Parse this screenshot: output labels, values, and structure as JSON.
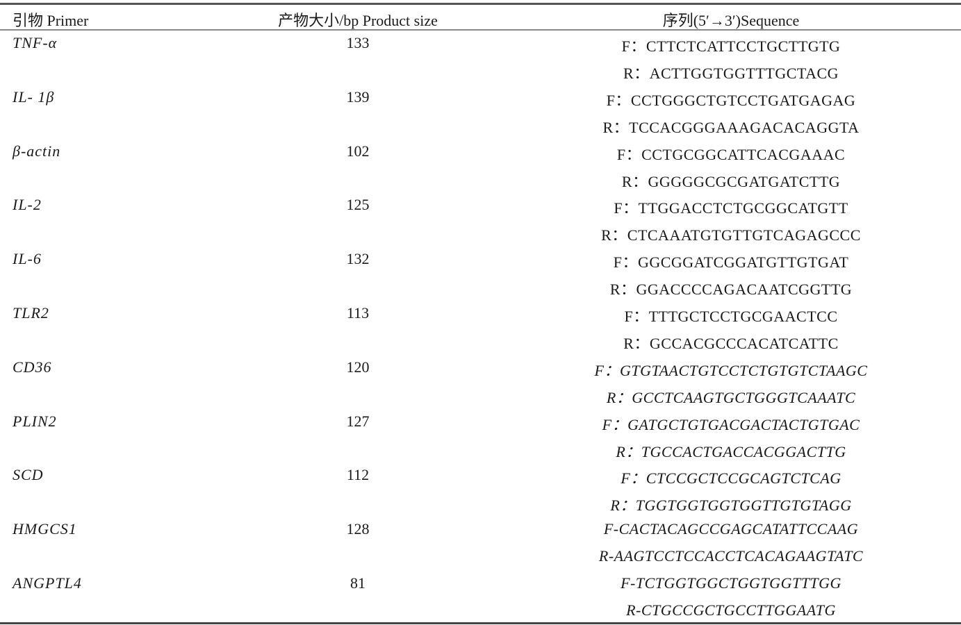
{
  "header": {
    "primer": "引物 Primer",
    "size": "产物大小/bp Product size",
    "sequence": "序列(5′→3′)Sequence"
  },
  "rows": [
    {
      "gene": "TNF-α",
      "size": "133",
      "forward": "F：CTTCTCATTCCTGCTTGTG",
      "reverse": "R：ACTTGGTGGTTTGCTACG",
      "italic_seq": false
    },
    {
      "gene": "IL- 1β",
      "size": "139",
      "forward": "F：CCTGGGCTGTCCTGATGAGAG",
      "reverse": "R：TCCACGGGAAAGACACAGGTA",
      "italic_seq": false
    },
    {
      "gene": "β-actin",
      "size": "102",
      "forward": "F：CCTGCGGCATTCACGAAAC",
      "reverse": "R：GGGGGCGCGATGATCTTG",
      "italic_seq": false
    },
    {
      "gene": "IL-2",
      "size": "125",
      "forward": "F：TTGGACCTCTGCGGCATGTT",
      "reverse": "R：CTCAAATGTGTTGTCAGAGCCC",
      "italic_seq": false
    },
    {
      "gene": "IL-6",
      "size": "132",
      "forward": "F：GGCGGATCGGATGTTGTGAT",
      "reverse": "R：GGACCCCAGACAATCGGTTG",
      "italic_seq": false
    },
    {
      "gene": "TLR2",
      "size": "113",
      "forward": "F：TTTGCTCCTGCGAACTCC",
      "reverse": "R：GCCACGCCCACATCATTC",
      "italic_seq": false
    },
    {
      "gene": "CD36",
      "size": "120",
      "forward": "F：GTGTAACTGTCCTCTGTGTCTAAGC",
      "reverse": "R：GCCTCAAGTGCTGGGTCAAATC",
      "italic_seq": true
    },
    {
      "gene": "PLIN2",
      "size": "127",
      "forward": "F：GATGCTGTGACGACTACTGTGAC",
      "reverse": "R：TGCCACTGACCACGGACTTG",
      "italic_seq": true
    },
    {
      "gene": "SCD",
      "size": "112",
      "forward": "F：CTCCGCTCCGCAGTCTCAG",
      "reverse": "R：TGGTGGTGGTGGTTGTGTAGG",
      "italic_seq": true
    },
    {
      "gene": "HMGCS1",
      "size": "128",
      "forward": "F-CACTACAGCCGAGCATATTCCAAG",
      "reverse": "R-AAGTCCTCCACCTCACAGAAGTATC",
      "italic_seq": true
    },
    {
      "gene": "ANGPTL4",
      "size": "81",
      "forward": "F-TCTGGTGGCTGGTGGTTTGG",
      "reverse": "R-CTGCCGCTGCCTTGGAATG",
      "italic_seq": true
    }
  ]
}
